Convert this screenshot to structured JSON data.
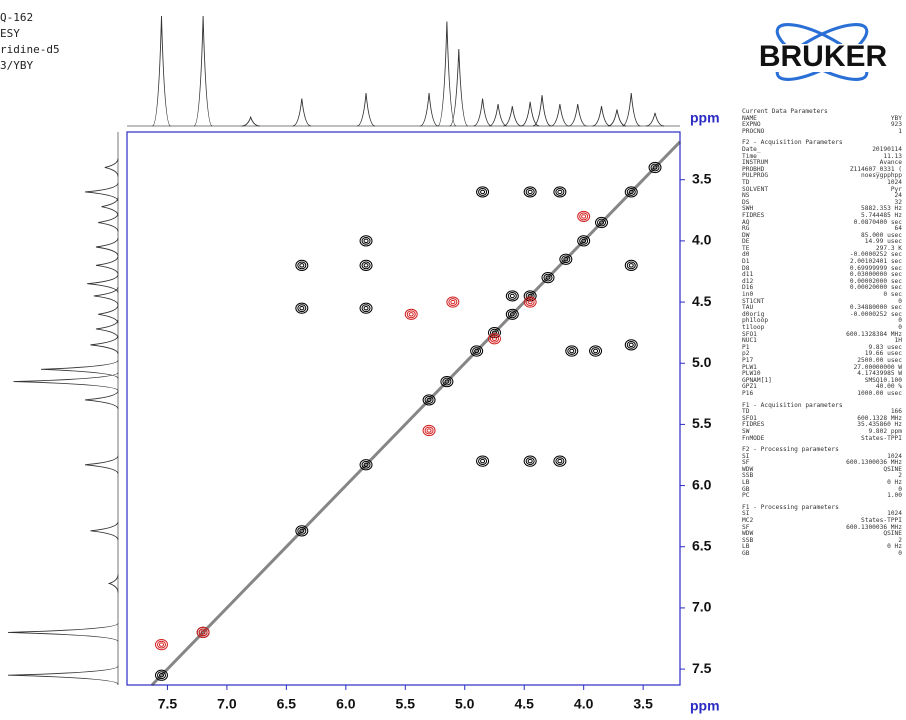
{
  "header_lines": [
    "Q-162",
    "ESY",
    "ridine-d5",
    "3/YBY"
  ],
  "logo": "BRUKER",
  "parameters": [
    {
      "title": "Current Data Parameters",
      "rows": [
        [
          "NAME",
          "YBY"
        ],
        [
          "EXPNO",
          "923"
        ],
        [
          "PROCNO",
          "1"
        ]
      ]
    },
    {
      "title": "F2 - Acquisition Parameters",
      "rows": [
        [
          "Date_",
          "20190114"
        ],
        [
          "Time",
          "11.13"
        ],
        [
          "INSTRUM",
          "Avance"
        ],
        [
          "PROBHD",
          "Z114607_0331 ("
        ],
        [
          "PULPROG",
          "noesygpphpp"
        ],
        [
          "TD",
          "1024"
        ],
        [
          "SOLVENT",
          "Pyr"
        ],
        [
          "NS",
          "24"
        ],
        [
          "DS",
          "32"
        ],
        [
          "SWH",
          "5882.353 Hz"
        ],
        [
          "FIDRES",
          "5.744485 Hz"
        ],
        [
          "AQ",
          "0.0870400 sec"
        ],
        [
          "RG",
          "64"
        ],
        [
          "DW",
          "85.000 usec"
        ],
        [
          "DE",
          "14.99 usec"
        ],
        [
          "TE",
          "297.3 K"
        ],
        [
          "d0",
          "-0.0000252 sec"
        ],
        [
          "D1",
          "2.00102401 sec"
        ],
        [
          "D8",
          "0.69999999 sec"
        ],
        [
          "d11",
          "0.03000000 sec"
        ],
        [
          "d12",
          "0.00002000 sec"
        ],
        [
          "D16",
          "0.00020000 sec"
        ],
        [
          "in0",
          "0 sec"
        ],
        [
          "ST1CNT",
          "0"
        ],
        [
          "TAU",
          "0.34880000 sec"
        ],
        [
          "d0orig",
          "-0.0000252 sec"
        ],
        [
          "ph1loop",
          "0"
        ],
        [
          "t1loop",
          "0"
        ],
        [
          "SFO1",
          "600.1328384 MHz"
        ],
        [
          "NUC1",
          "1H"
        ],
        [
          "P1",
          "9.83 usec"
        ],
        [
          "p2",
          "19.66 usec"
        ],
        [
          "P17",
          "2500.00 usec"
        ],
        [
          "PLW1",
          "27.00000000 W"
        ],
        [
          "PLW10",
          "4.17439985 W"
        ],
        [
          "GPNAM[1]",
          "SMSQ10.100"
        ],
        [
          "GPZ1",
          "40.00 %"
        ],
        [
          "P16",
          "1000.00 usec"
        ]
      ]
    },
    {
      "title": "F1 - Acquisition parameters",
      "rows": [
        [
          "TD",
          "166"
        ],
        [
          "SFO1",
          "600.1328 MHz"
        ],
        [
          "FIDRES",
          "35.435860 Hz"
        ],
        [
          "SW",
          "9.802 ppm"
        ],
        [
          "FnMODE",
          "States-TPPI"
        ]
      ]
    },
    {
      "title": "F2 - Processing parameters",
      "rows": [
        [
          "SI",
          "1024"
        ],
        [
          "SF",
          "600.1300036 MHz"
        ],
        [
          "WDW",
          "QSINE"
        ],
        [
          "SSB",
          "2"
        ],
        [
          "LB",
          "0 Hz"
        ],
        [
          "GB",
          "0"
        ],
        [
          "PC",
          "1.00"
        ]
      ]
    },
    {
      "title": "F1 - Processing parameters",
      "rows": [
        [
          "SI",
          "1024"
        ],
        [
          "MC2",
          "States-TPPI"
        ],
        [
          "SF",
          "600.1300036 MHz"
        ],
        [
          "WDW",
          "QSINE"
        ],
        [
          "SSB",
          "2"
        ],
        [
          "LB",
          "0 Hz"
        ],
        [
          "GB",
          "0"
        ]
      ]
    }
  ],
  "chart_data": {
    "type": "contour",
    "x_label": "ppm",
    "y_label": "ppm",
    "xlim": [
      7.84,
      3.19
    ],
    "ylim": [
      3.11,
      7.63
    ],
    "xticks": [
      7.5,
      {
        "value": 7,
        "label": "7.0"
      },
      6.5,
      {
        "value": 6,
        "label": "6.0"
      },
      5.5,
      {
        "value": 5,
        "label": "5.0"
      },
      4.5,
      {
        "value": 4,
        "label": "4.0"
      },
      3.5
    ],
    "yticks": [
      3.5,
      {
        "value": 4,
        "label": "4.0"
      },
      4.5,
      {
        "value": 5,
        "label": "5.0"
      },
      5.5,
      {
        "value": 6,
        "label": "6.0"
      },
      6.5,
      {
        "value": 7,
        "label": "7.0"
      },
      7.5
    ],
    "series": [
      {
        "color": "#000000",
        "x": [
          7.55,
          7.2,
          6.37,
          5.83,
          5.3,
          5.15,
          4.9,
          4.75,
          4.6,
          4.45,
          4.3,
          4.15,
          4.0,
          3.85,
          3.6,
          3.4,
          6.37,
          5.83,
          5.83,
          6.37,
          5.83,
          4.85,
          4.45,
          4.2,
          3.6,
          3.6,
          4.2,
          4.45,
          4.85,
          3.9,
          4.1,
          4.6
        ],
        "y": [
          7.55,
          7.2,
          6.37,
          5.83,
          5.3,
          5.15,
          4.9,
          4.75,
          4.6,
          4.45,
          4.3,
          4.15,
          4.0,
          3.85,
          3.6,
          3.4,
          4.2,
          4.2,
          4.0,
          4.55,
          4.55,
          3.6,
          3.6,
          3.6,
          4.2,
          4.85,
          5.8,
          5.8,
          5.8,
          4.9,
          4.9,
          4.45
        ]
      },
      {
        "color": "#d42020",
        "x": [
          5.45,
          5.1,
          4.0,
          7.55,
          7.2,
          5.3,
          4.75,
          4.45
        ],
        "y": [
          4.6,
          4.5,
          3.8,
          7.3,
          7.2,
          5.55,
          4.8,
          4.5
        ]
      }
    ],
    "projection": {
      "x": [
        7.55,
        7.2,
        6.8,
        6.37,
        5.83,
        5.3,
        5.15,
        5.05,
        4.85,
        4.72,
        4.6,
        4.45,
        4.35,
        4.2,
        4.05,
        3.85,
        3.72,
        3.6,
        3.4
      ],
      "values": [
        100,
        100,
        8,
        25,
        30,
        30,
        95,
        70,
        25,
        20,
        18,
        22,
        28,
        20,
        20,
        18,
        15,
        30,
        12
      ]
    }
  }
}
